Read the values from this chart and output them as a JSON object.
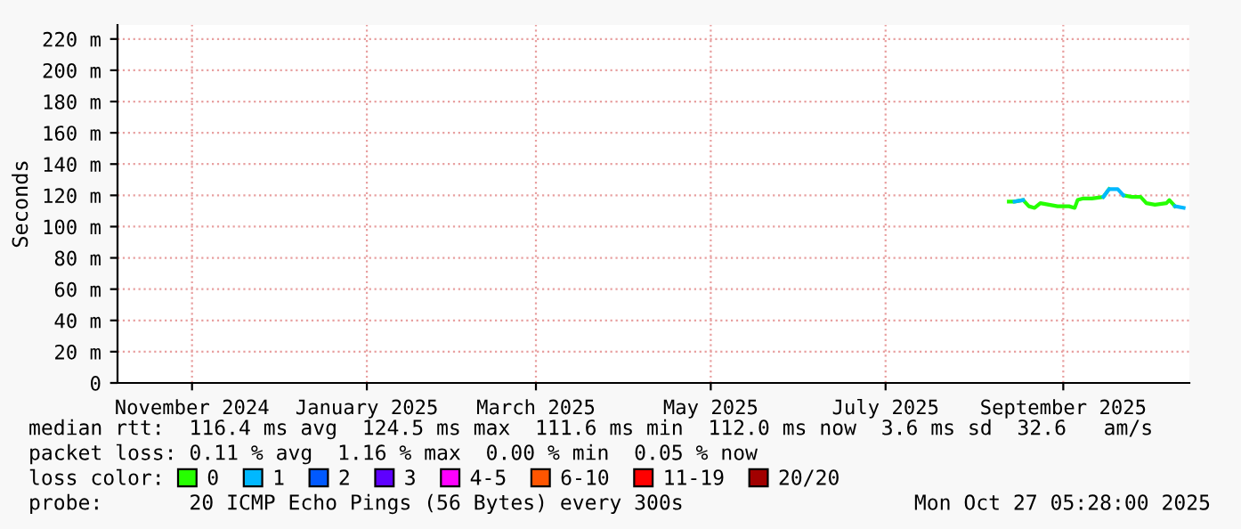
{
  "chart_data": {
    "type": "line",
    "ylabel": "Seconds",
    "legend_title": "loss color:",
    "legend": "bottom",
    "grid": true,
    "marker": "none",
    "line_style": "solid",
    "xlim": [
      "2024-10-06",
      "2025-10-15"
    ],
    "xticks": [
      {
        "value": "2024-11-01",
        "label": "November 2024"
      },
      {
        "value": "2025-01-01",
        "label": "January 2025"
      },
      {
        "value": "2025-03-01",
        "label": "March 2025"
      },
      {
        "value": "2025-05-01",
        "label": "May 2025"
      },
      {
        "value": "2025-07-01",
        "label": "July 2025"
      },
      {
        "value": "2025-09-01",
        "label": "September 2025"
      }
    ],
    "ylim": [
      0,
      229
    ],
    "yticks": [
      0,
      {
        "value": 20,
        "label": "20 m"
      },
      {
        "value": 40,
        "label": "40 m"
      },
      {
        "value": 60,
        "label": "60 m"
      },
      {
        "value": 80,
        "label": "80 m"
      },
      {
        "value": 100,
        "label": "100 m"
      },
      {
        "value": 120,
        "label": "120 m"
      },
      {
        "value": 140,
        "label": "140 m"
      },
      {
        "value": 160,
        "label": "160 m"
      },
      {
        "value": 180,
        "label": "180 m"
      },
      {
        "value": 200,
        "label": "200 m"
      },
      {
        "value": 220,
        "label": "220 m"
      }
    ],
    "x": [
      "2025-08-13",
      "2025-08-15",
      "2025-08-18",
      "2025-08-20",
      "2025-08-22",
      "2025-08-24",
      "2025-08-27",
      "2025-08-30",
      "2025-09-03",
      "2025-09-05",
      "2025-09-06",
      "2025-09-08",
      "2025-09-11",
      "2025-09-15",
      "2025-09-17",
      "2025-09-20",
      "2025-09-22",
      "2025-09-25",
      "2025-09-28",
      "2025-09-30",
      "2025-10-03",
      "2025-10-07",
      "2025-10-08",
      "2025-10-10",
      "2025-10-13"
    ],
    "series": [
      {
        "name": "0",
        "color": "#26ff00",
        "values": [
          116,
          116,
          117,
          113,
          112,
          115,
          114,
          113,
          113,
          112,
          117,
          118,
          118,
          119,
          124,
          null,
          120,
          119,
          119,
          115,
          114,
          115,
          117,
          113,
          null
        ]
      },
      {
        "name": "1",
        "color": "#00b8ff",
        "values": [
          null,
          116,
          117,
          null,
          null,
          null,
          null,
          null,
          null,
          null,
          null,
          null,
          null,
          119,
          124,
          124,
          120,
          null,
          null,
          null,
          null,
          null,
          null,
          113,
          112
        ]
      },
      {
        "name": "2",
        "color": "#0059ff",
        "values": [
          null,
          null,
          null,
          null,
          null,
          null,
          null,
          null,
          null,
          null,
          null,
          null,
          null,
          null,
          null,
          null,
          null,
          null,
          null,
          null,
          null,
          null,
          null,
          null,
          null
        ]
      },
      {
        "name": "3",
        "color": "#5e00ff",
        "values": [
          null,
          null,
          null,
          null,
          null,
          null,
          null,
          null,
          null,
          null,
          null,
          null,
          null,
          null,
          null,
          null,
          null,
          null,
          null,
          null,
          null,
          null,
          null,
          null,
          null
        ]
      },
      {
        "name": "4-5",
        "color": "#ff00ff",
        "values": [
          null,
          null,
          null,
          null,
          null,
          null,
          null,
          null,
          null,
          null,
          null,
          null,
          null,
          null,
          null,
          null,
          null,
          null,
          null,
          null,
          null,
          null,
          null,
          null,
          null
        ]
      },
      {
        "name": "6-10",
        "color": "#ff5500",
        "values": [
          null,
          null,
          null,
          null,
          null,
          null,
          null,
          null,
          null,
          null,
          null,
          null,
          null,
          null,
          null,
          null,
          null,
          null,
          null,
          null,
          null,
          null,
          null,
          null,
          null
        ]
      },
      {
        "name": "11-19",
        "color": "#ff0000",
        "values": [
          null,
          null,
          null,
          null,
          null,
          null,
          null,
          null,
          null,
          null,
          null,
          null,
          null,
          null,
          null,
          null,
          null,
          null,
          null,
          null,
          null,
          null,
          null,
          null,
          null
        ]
      },
      {
        "name": "20/20",
        "color": "#a10000",
        "values": [
          null,
          null,
          null,
          null,
          null,
          null,
          null,
          null,
          null,
          null,
          null,
          null,
          null,
          null,
          null,
          null,
          null,
          null,
          null,
          null,
          null,
          null,
          null,
          null,
          null
        ]
      }
    ],
    "annotations": [
      "median rtt:  116.4 ms avg  124.5 ms max  111.6 ms min  112.0 ms now  3.6 ms sd  32.6   am/s",
      "packet loss: 0.11 % avg  1.16 % max  0.00 % min  0.05 % now",
      "probe:       20 ICMP Echo Pings (56 Bytes) every 300s",
      "Mon Oct 27 05:28:00 2025"
    ]
  }
}
